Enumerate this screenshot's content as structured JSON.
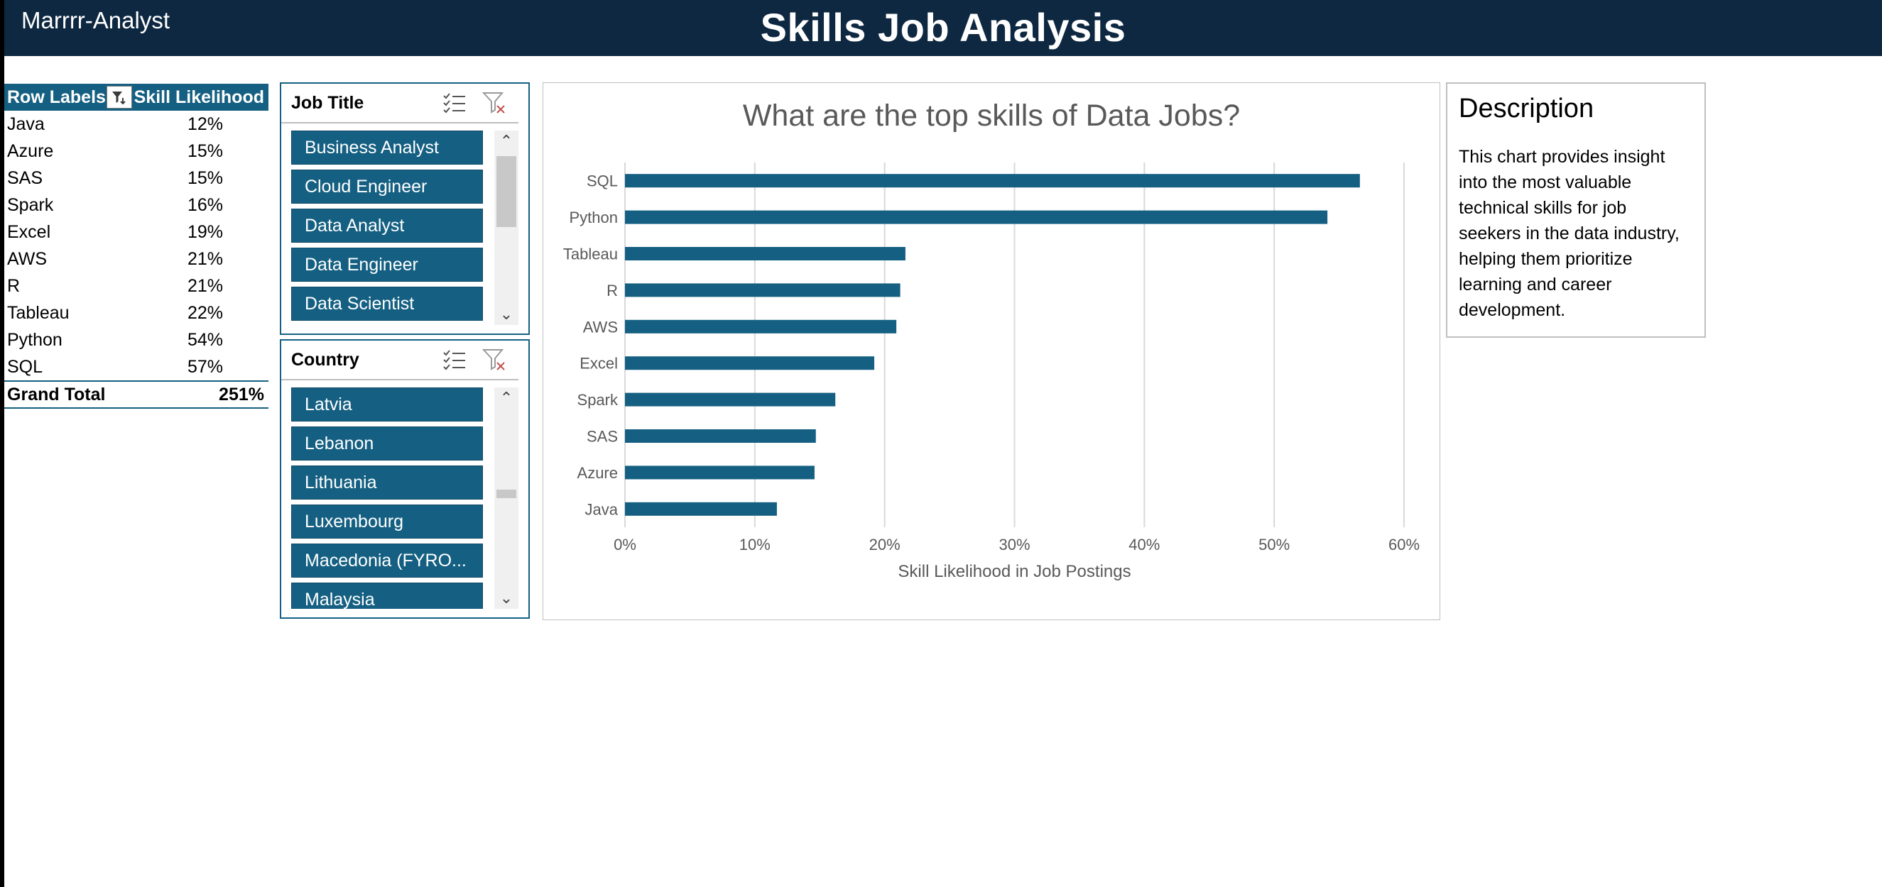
{
  "header": {
    "brand": "Marrrr-Analyst",
    "title": "Skills Job Analysis"
  },
  "pivot": {
    "col1": "Row Labels",
    "col2": "Skill Likelihood",
    "rows": [
      {
        "label": "Java",
        "value": "12%"
      },
      {
        "label": "Azure",
        "value": "15%"
      },
      {
        "label": "SAS",
        "value": "15%"
      },
      {
        "label": "Spark",
        "value": "16%"
      },
      {
        "label": "Excel",
        "value": "19%"
      },
      {
        "label": "AWS",
        "value": "21%"
      },
      {
        "label": "R",
        "value": "21%"
      },
      {
        "label": "Tableau",
        "value": "22%"
      },
      {
        "label": "Python",
        "value": "54%"
      },
      {
        "label": "SQL",
        "value": "57%"
      }
    ],
    "total_label": "Grand Total",
    "total_value": "251%"
  },
  "slicer_job": {
    "title": "Job Title",
    "items": [
      "Business Analyst",
      "Cloud Engineer",
      "Data Analyst",
      "Data Engineer",
      "Data Scientist"
    ]
  },
  "slicer_country": {
    "title": "Country",
    "items": [
      "Latvia",
      "Lebanon",
      "Lithuania",
      "Luxembourg",
      "Macedonia (FYRO...",
      "Malaysia"
    ]
  },
  "description": {
    "title": "Description",
    "text": "This chart provides insight into the most valuable technical skills for job seekers in the data industry, helping them prioritize learning and career development."
  },
  "colors": {
    "banner": "#0e2841",
    "accent": "#156082",
    "bar": "#156082"
  },
  "chart_data": {
    "type": "bar",
    "orientation": "horizontal",
    "title": "What are the top skills of Data Jobs?",
    "xlabel": "Skill Likelihood in Job Postings",
    "ylabel": "",
    "categories": [
      "SQL",
      "Python",
      "Tableau",
      "R",
      "AWS",
      "Excel",
      "Spark",
      "SAS",
      "Azure",
      "Java"
    ],
    "values": [
      0.566,
      0.541,
      0.216,
      0.212,
      0.209,
      0.192,
      0.162,
      0.147,
      0.146,
      0.117
    ],
    "xlim": [
      0,
      0.6
    ],
    "xticks": [
      "0%",
      "10%",
      "20%",
      "30%",
      "40%",
      "50%",
      "60%"
    ],
    "grid": true,
    "legend": "none"
  }
}
